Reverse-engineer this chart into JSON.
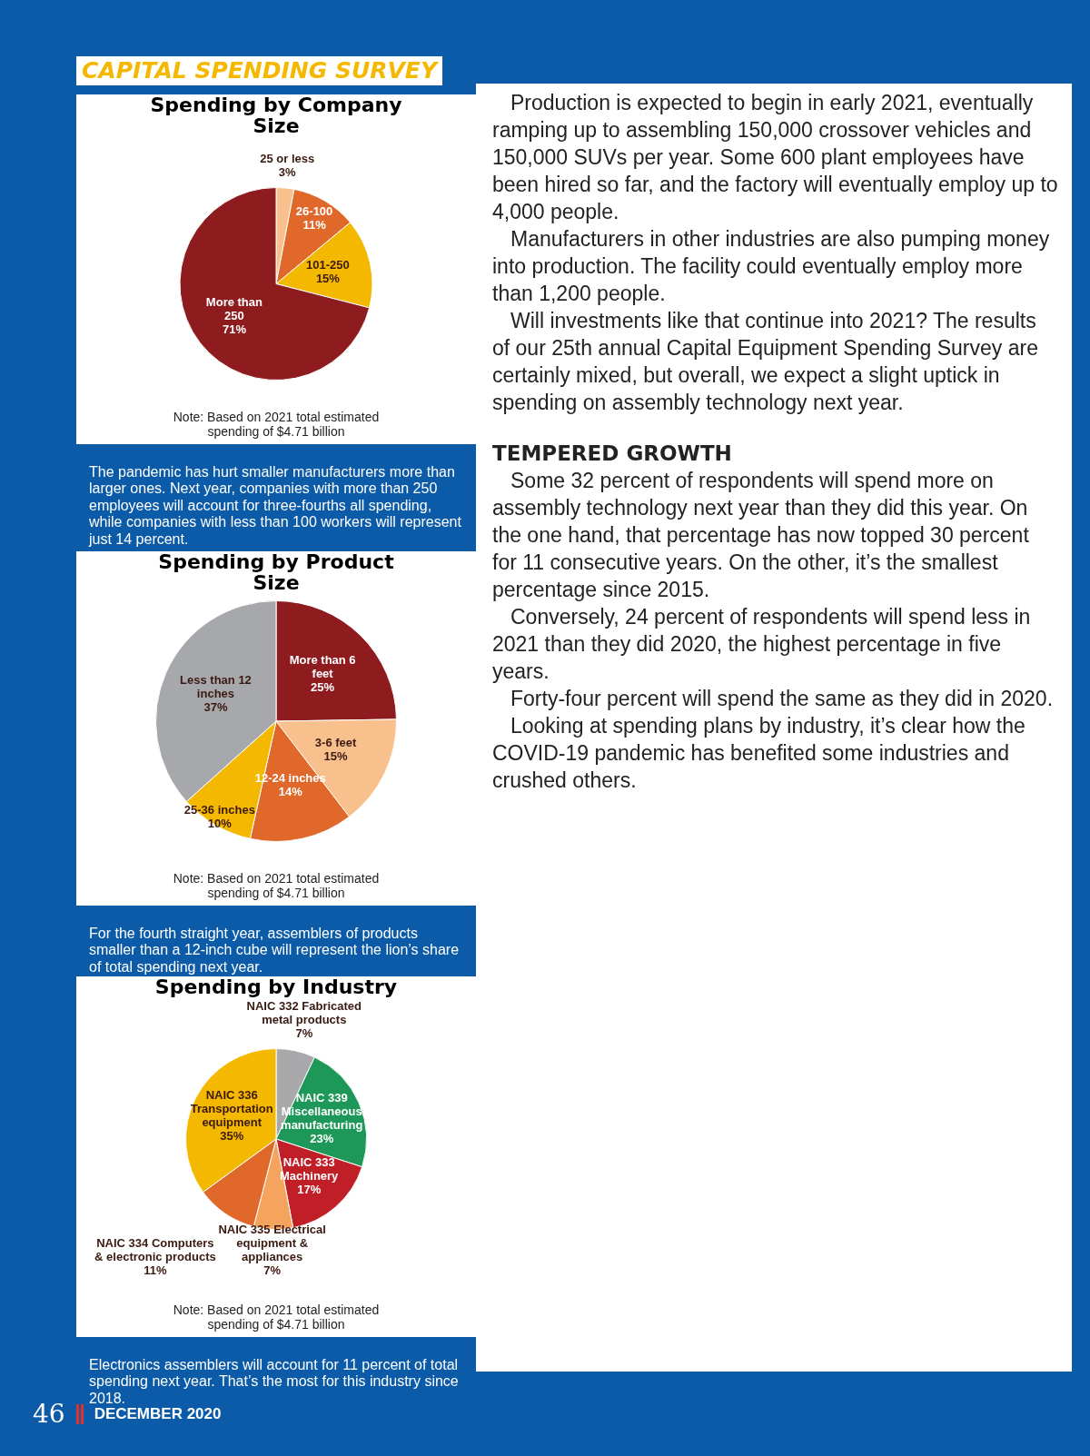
{
  "chart_data": [
    {
      "type": "other",
      "title": "CAPITAL SPENDING SURVEY"
    },
    {
      "type": "pie",
      "title": "Spending by Company Size",
      "categories": [
        "25 or less",
        "26-100",
        "101-250",
        "More than 250"
      ],
      "values": [
        3,
        11,
        15,
        71
      ],
      "value_labels": [
        "3%",
        "11%",
        "15%",
        "71%"
      ],
      "colors": [
        "#f8c08c",
        "#e0682a",
        "#f5b800",
        "#8e1c1e"
      ],
      "annotations": [
        "Note: Based on 2021 total estimated spending of $4.71 billion",
        "The pandemic has hurt smaller manufacturers more than larger ones. Next year, companies with more than 250 employees will account for three-fourths all spending, while companies with less than 100 workers will represent just 14 percent."
      ]
    },
    {
      "type": "pie",
      "title": "Spending by Product Size",
      "categories": [
        "More than 6 feet",
        "3-6 feet",
        "12-24 inches",
        "25-36 inches",
        "Less than 12 inches"
      ],
      "values": [
        25,
        15,
        14,
        10,
        37
      ],
      "value_labels": [
        "25%",
        "15%",
        "14%",
        "10%",
        "37%"
      ],
      "colors": [
        "#8e1c1e",
        "#f8c08c",
        "#e0682a",
        "#f5b800",
        "#a7a8ab"
      ],
      "annotations": [
        "Note: Based on 2021 total estimated spending of $4.71 billion",
        "For the fourth straight year, assemblers of products smaller than a 12-inch cube will represent the lion’s share of total spending next year."
      ]
    },
    {
      "type": "pie",
      "title": "Spending by Industry",
      "categories": [
        "NAIC 332 Fabricated metal products",
        "NAIC 339 Miscellaneous manufacturing",
        "NAIC 333 Machinery",
        "NAIC 335 Electrical equipment & appliances",
        "NAIC 334 Computers & electronic products",
        "NAIC 336 Transportation equipment"
      ],
      "values": [
        7,
        23,
        17,
        7,
        11,
        35
      ],
      "value_labels": [
        "7%",
        "23%",
        "17%",
        "7%",
        "11%",
        "35%"
      ],
      "colors": [
        "#a9a9ab",
        "#1e9858",
        "#c01f28",
        "#f4a45c",
        "#e0682a",
        "#f5b800"
      ],
      "annotations": [
        "Note: Based on 2021 total estimated spending of $4.71 billion",
        "Electronics assemblers will account for 11 percent of total spending next year. That’s the most for this industry since 2018."
      ]
    },
    {
      "type": "other",
      "annotations": [
        "Production is expected to begin in early 2021, eventually ramping up to assembling 150,000 crossover vehicles and 150,000 SUVs per year. Some 600 plant employees have been hired so far, and the factory will eventually employ up to 4,000 people.",
        "Manufacturers in other industries are also pumping money into production. The facility could eventually employ more than 1,200 people.",
        "Will investments like that continue into 2021? The results of our 25th annual Capital Equipment Spending Survey are certainly mixed, but overall, we expect a slight uptick in spending on assembly technology next year."
      ]
    },
    {
      "type": "other",
      "title": "TEMPERED GROWTH",
      "annotations": [
        "Some 32 percent of respondents will spend more on assembly technology next year than they did this year. On the one hand, that percentage has now topped 30 percent for 11 consecutive years. On the other, it’s the smallest percentage since 2015.",
        "Conversely, 24 percent of respondents will spend less in 2021 than they did 2020, the highest percentage in five years.",
        "Forty-four percent will spend the same as they did in 2020.",
        "Looking at spending plans by industry, it’s clear how the COVID-19 pandemic has benefited some industries and crushed others."
      ]
    },
    {
      "type": "other",
      "annotations": [
        "46",
        "DECEMBER 2020"
      ]
    }
  ]
}
